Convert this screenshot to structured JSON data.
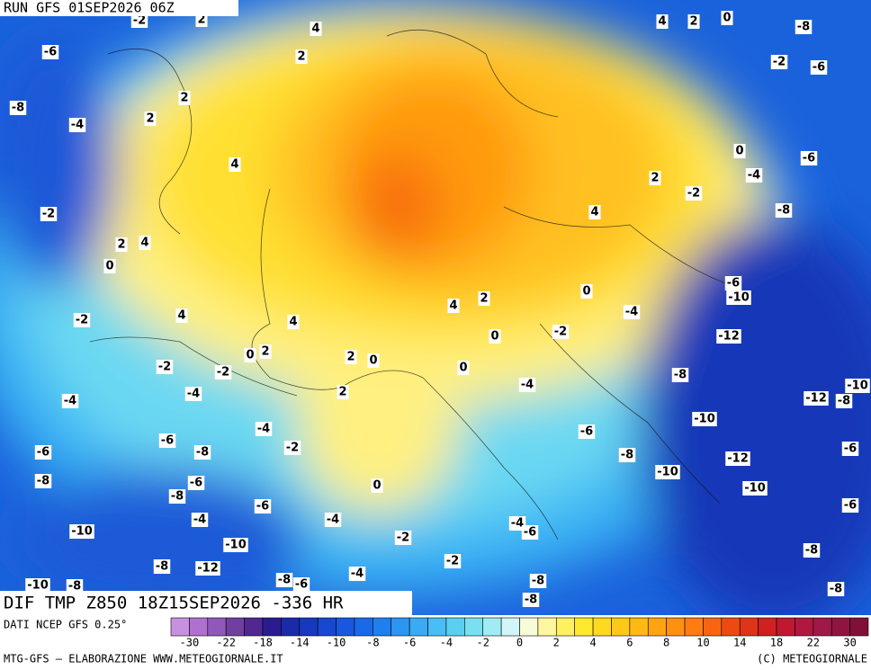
{
  "header": {
    "run": "RUN GFS 01SEP2026 06Z"
  },
  "title": "DIF TMP Z850 18Z15SEP2026 -336 HR",
  "source": "DATI NCEP GFS 0.25°",
  "footer": {
    "left": "MTG-GFS – ELABORAZIONE WWW.METEOGIORNALE.IT",
    "right": "(C) METEOGIORNALE"
  },
  "colorbar": {
    "colors": [
      "#c890e0",
      "#b070d0",
      "#9058b8",
      "#7040a0",
      "#502890",
      "#2a1c90",
      "#1a2aa8",
      "#1838c0",
      "#1848d0",
      "#1858e0",
      "#1a6ae8",
      "#1e80ee",
      "#2a96f2",
      "#3aaaf4",
      "#48bef4",
      "#5ad0f0",
      "#78e0f0",
      "#a0ecf4",
      "#d0f6fa",
      "#f6fcd8",
      "#fff6a0",
      "#fff060",
      "#ffe830",
      "#ffd820",
      "#ffc818",
      "#ffb814",
      "#ffa410",
      "#ff9010",
      "#ff7c10",
      "#f86410",
      "#ee4a10",
      "#e03418",
      "#d02020",
      "#c01830",
      "#b01840",
      "#a01848",
      "#901440",
      "#801038"
    ],
    "labels": [
      "-30",
      "-22",
      "-18",
      "-14",
      "-10",
      "-8",
      "-6",
      "-4",
      "-2",
      "0",
      "2",
      "4",
      "6",
      "8",
      "10",
      "14",
      "18",
      "22",
      "30"
    ]
  },
  "contour_labels": [
    "-2",
    "2",
    "4",
    "4",
    "2",
    "0",
    "-8",
    "-6",
    "2",
    "-2",
    "-6",
    "2",
    "-8",
    "2",
    "-4",
    "0",
    "-6",
    "4",
    "-4",
    "2",
    "-2",
    "-2",
    "4",
    "-8",
    "2",
    "4",
    "0",
    "-6",
    "-10",
    "0",
    "2",
    "4",
    "-2",
    "4",
    "4",
    "-4",
    "-2",
    "-12",
    "0",
    "0",
    "2",
    "2",
    "0",
    "-2",
    "-2",
    "0",
    "-8",
    "-4",
    "2",
    "-4",
    "-12",
    "-10",
    "-8",
    "-4",
    "-10",
    "-4",
    "-6",
    "-6",
    "-8",
    "-2",
    "-8",
    "-12",
    "-6",
    "-6",
    "-10",
    "-8",
    "-6",
    "0",
    "-10",
    "-8",
    "-6",
    "-6",
    "-4",
    "-4",
    "-4",
    "-6",
    "-10",
    "-2",
    "-10",
    "-8",
    "-2",
    "-8",
    "-12",
    "-8",
    "-6",
    "-4",
    "-8",
    "-10",
    "-8",
    "-8",
    "-8"
  ]
}
